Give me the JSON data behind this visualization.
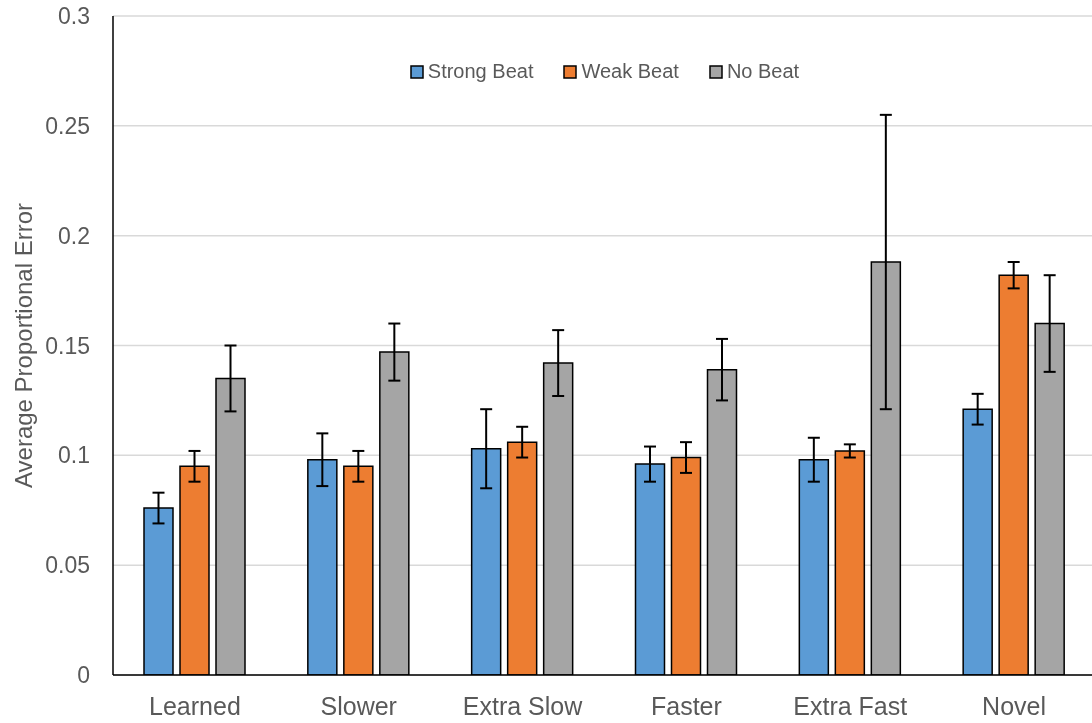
{
  "chart_data": {
    "type": "bar",
    "ylabel": "Average Proportional Error",
    "categories": [
      "Learned",
      "Slower",
      "Extra Slow",
      "Faster",
      "Extra Fast",
      "Novel"
    ],
    "series": [
      {
        "name": "Strong Beat",
        "color": "#5b9bd5",
        "values": [
          0.076,
          0.098,
          0.103,
          0.096,
          0.098,
          0.121
        ],
        "errors": [
          0.007,
          0.012,
          0.018,
          0.008,
          0.01,
          0.007
        ]
      },
      {
        "name": "Weak Beat",
        "color": "#ed7d31",
        "values": [
          0.095,
          0.095,
          0.106,
          0.099,
          0.102,
          0.182
        ],
        "errors": [
          0.007,
          0.007,
          0.007,
          0.007,
          0.003,
          0.006
        ]
      },
      {
        "name": "No Beat",
        "color": "#a5a5a5",
        "values": [
          0.135,
          0.147,
          0.142,
          0.139,
          0.188,
          0.16
        ],
        "errors": [
          0.015,
          0.013,
          0.015,
          0.014,
          0.067,
          0.022
        ]
      }
    ],
    "ylim": [
      0,
      0.3
    ],
    "yticks": [
      0,
      0.05,
      0.1,
      0.15,
      0.2,
      0.25,
      0.3
    ],
    "grid": "y",
    "legend": "top"
  }
}
